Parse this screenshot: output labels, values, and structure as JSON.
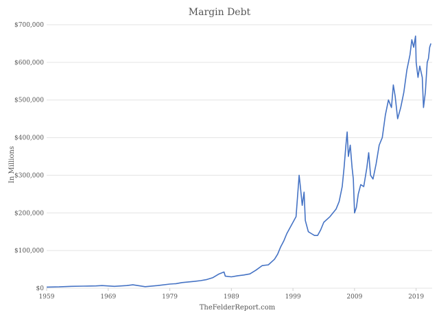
{
  "chart_data": {
    "type": "line",
    "title": "Margin Debt",
    "ylabel": "In Millions",
    "xlabel": "TheFelderReport.com",
    "xlim": [
      1959,
      2021.6
    ],
    "ylim": [
      0,
      700000
    ],
    "grid": true,
    "y_ticks": [
      0,
      100000,
      200000,
      300000,
      400000,
      500000,
      600000,
      700000
    ],
    "y_tick_labels": [
      "$0",
      "$100,000",
      "$200,000",
      "$300,000",
      "$400,000",
      "$500,000",
      "$600,000",
      "$700,000"
    ],
    "x_ticks": [
      1959,
      1969,
      1979,
      1989,
      1999,
      2009,
      2019
    ],
    "x_tick_labels": [
      "1959",
      "1969",
      "1979",
      "1989",
      "1999",
      "2009",
      "2019"
    ],
    "color": "#4472c4",
    "series": [
      {
        "name": "Margin Debt",
        "x": [
          1959,
          1961,
          1963,
          1965,
          1967,
          1968,
          1970,
          1972,
          1973,
          1975,
          1977,
          1979,
          1980,
          1981,
          1983,
          1984,
          1985,
          1986,
          1987,
          1987.8,
          1988,
          1989,
          1990,
          1991,
          1992,
          1993,
          1994,
          1995,
          1996,
          1996.5,
          1997,
          1997.5,
          1998,
          1998.5,
          1999,
          1999.5,
          2000,
          2000.2,
          2000.5,
          2000.8,
          2001,
          2001.5,
          2002,
          2002.5,
          2003,
          2003.5,
          2004,
          2005,
          2006,
          2006.5,
          2007,
          2007.3,
          2007.6,
          2007.8,
          2008,
          2008.3,
          2008.6,
          2008.8,
          2009,
          2009.3,
          2009.6,
          2010,
          2010.5,
          2011,
          2011.3,
          2011.6,
          2012,
          2012.5,
          2013,
          2013.5,
          2014,
          2014.5,
          2015,
          2015.3,
          2015.6,
          2016,
          2016.5,
          2017,
          2017.5,
          2018,
          2018.3,
          2018.6,
          2018.9,
          2019,
          2019.3,
          2019.6,
          2020,
          2020.2,
          2020.5,
          2020.8,
          2021,
          2021.2,
          2021.4
        ],
        "values": [
          3000,
          3500,
          5000,
          5500,
          6000,
          7000,
          5000,
          7000,
          9000,
          4000,
          7000,
          11000,
          12000,
          15000,
          18000,
          20000,
          23000,
          28000,
          38000,
          43000,
          32000,
          30000,
          33000,
          35000,
          38000,
          48000,
          60000,
          62000,
          77000,
          90000,
          110000,
          125000,
          145000,
          160000,
          175000,
          190000,
          300000,
          270000,
          220000,
          255000,
          180000,
          150000,
          145000,
          140000,
          140000,
          155000,
          175000,
          190000,
          210000,
          230000,
          270000,
          320000,
          380000,
          415000,
          350000,
          380000,
          320000,
          290000,
          200000,
          215000,
          250000,
          275000,
          270000,
          320000,
          360000,
          300000,
          290000,
          330000,
          380000,
          400000,
          460000,
          500000,
          480000,
          540000,
          510000,
          450000,
          480000,
          520000,
          580000,
          620000,
          660000,
          640000,
          670000,
          600000,
          560000,
          590000,
          560000,
          480000,
          520000,
          600000,
          610000,
          640000,
          650000
        ]
      }
    ]
  },
  "colors": {
    "line": "#4472c4",
    "grid": "#e3e3e3",
    "text": "#555555"
  }
}
